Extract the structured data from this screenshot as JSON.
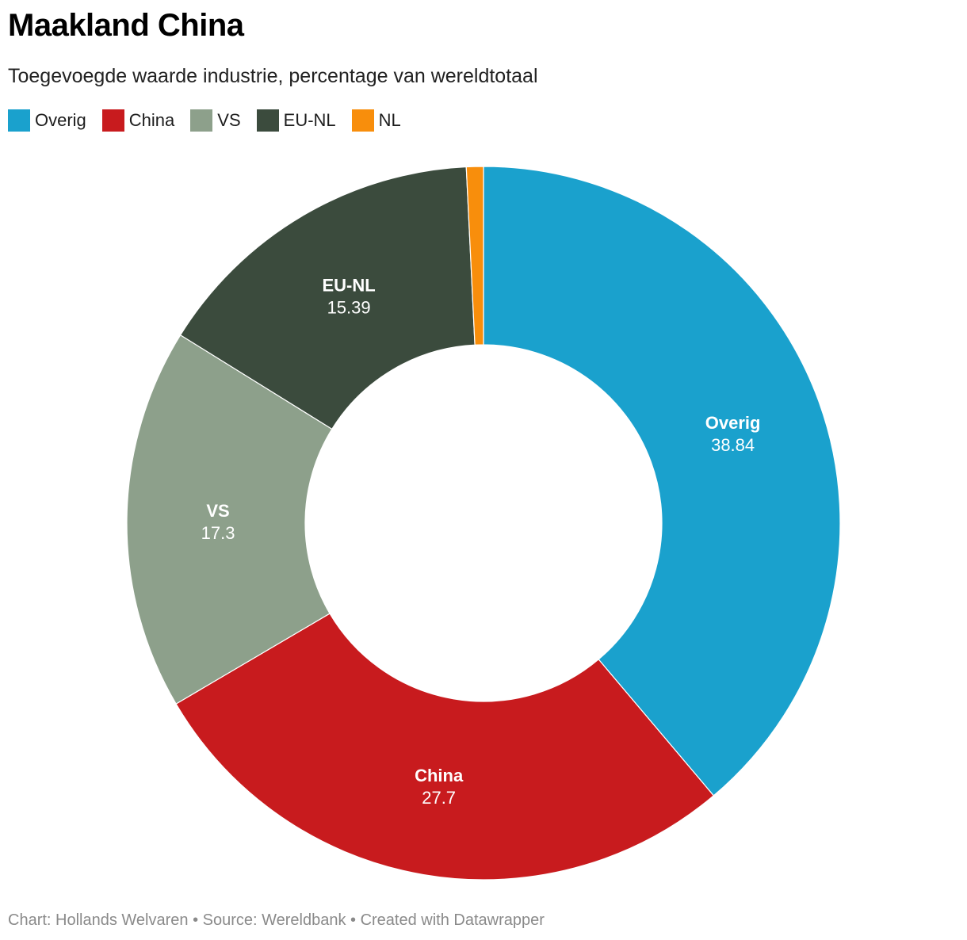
{
  "title": "Maakland China",
  "subtitle": "Toegevoegde waarde industrie, percentage van wereldtotaal",
  "legend": [
    {
      "label": "Overig",
      "color": "#1aa1cd"
    },
    {
      "label": "China",
      "color": "#c81b1e"
    },
    {
      "label": "VS",
      "color": "#8da08b"
    },
    {
      "label": "EU-NL",
      "color": "#3b4b3d"
    },
    {
      "label": "NL",
      "color": "#f88e0c"
    }
  ],
  "chart_data": {
    "type": "pie",
    "variant": "donut",
    "title": "Maakland China",
    "subtitle": "Toegevoegde waarde industrie, percentage van wereldtotaal",
    "categories": [
      "Overig",
      "China",
      "VS",
      "EU-NL",
      "NL"
    ],
    "values": [
      38.84,
      27.7,
      17.3,
      15.39,
      0.77
    ],
    "value_labels": [
      "38.84",
      "27.7",
      "17.3",
      "15.39",
      ""
    ],
    "colors": [
      "#1aa1cd",
      "#c81b1e",
      "#8da08b",
      "#3b4b3d",
      "#f88e0c"
    ],
    "legend": "top-left"
  },
  "footer": "Chart: Hollands Welvaren • Source: Wereldbank • Created with Datawrapper"
}
